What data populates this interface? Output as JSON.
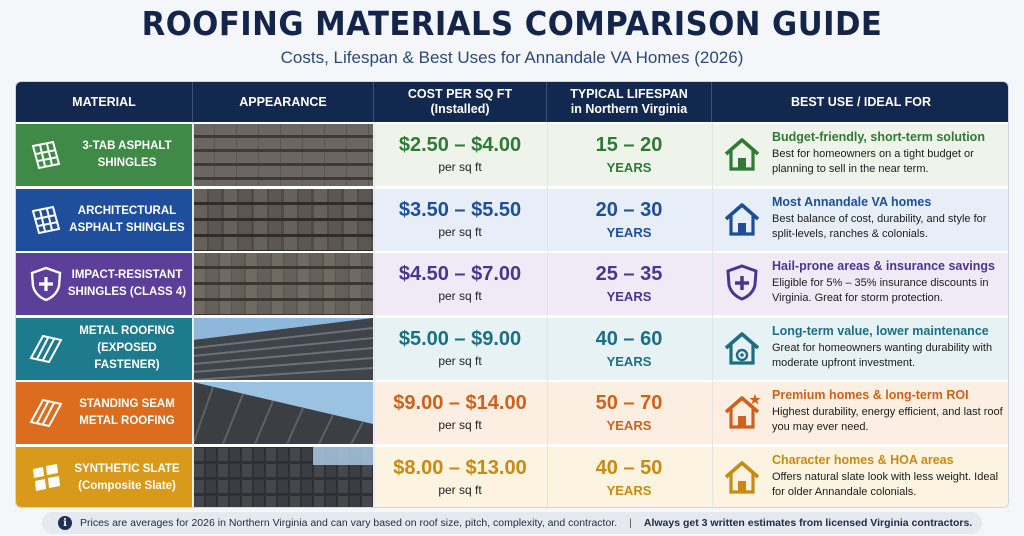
{
  "title": "ROOFING MATERIALS COMPARISON GUIDE",
  "subtitle": "Costs, Lifespan & Best Uses for Annandale VA Homes (2026)",
  "headers": {
    "material": "MATERIAL",
    "appearance": "APPEARANCE",
    "cost_line1": "COST PER SQ FT",
    "cost_line2": "(Installed)",
    "life_line1": "TYPICAL LIFESPAN",
    "life_line2": "in Northern Virginia",
    "best": "BEST USE / IDEAL FOR"
  },
  "rows": [
    {
      "label1": "3-TAB ASPHALT",
      "label2": "SHINGLES",
      "icon": "shingles-icon",
      "color": "#3f8a46",
      "tint": "#eef4ea",
      "accent": "#2f7a34",
      "cost": "$2.50 – $4.00",
      "cost_unit": "per sq ft",
      "life": "15 – 20",
      "life_unit": "YEARS",
      "best_icon": "house-icon",
      "best_title": "Budget-friendly, short-term solution",
      "best_desc": "Best for homeowners on a tight budget or planning to sell in the near term."
    },
    {
      "label1": "ARCHITECTURAL",
      "label2": "ASPHALT SHINGLES",
      "icon": "shingles-icon",
      "color": "#1f4f9c",
      "tint": "#e8eef8",
      "accent": "#1d4e9a",
      "cost": "$3.50 – $5.50",
      "cost_unit": "per sq ft",
      "life": "20 – 30",
      "life_unit": "YEARS",
      "best_icon": "house-icon",
      "best_title": "Most Annandale VA homes",
      "best_desc": "Best balance of cost, durability, and style for split-levels, ranches & colonials."
    },
    {
      "label1": "IMPACT-RESISTANT",
      "label2": "SHINGLES (CLASS 4)",
      "icon": "shield-plus-icon",
      "color": "#5b3f99",
      "tint": "#efeaf6",
      "accent": "#4b3590",
      "cost": "$4.50 – $7.00",
      "cost_unit": "per sq ft",
      "life": "25 – 35",
      "life_unit": "YEARS",
      "best_icon": "shield-plus-icon",
      "best_title": "Hail-prone areas & insurance savings",
      "best_desc": "Eligible for 5% – 35% insurance discounts in Virginia. Great for storm protection."
    },
    {
      "label1": "METAL ROOFING",
      "label2": "(EXPOSED FASTENER)",
      "icon": "metal-panel-icon",
      "color": "#1e7b8e",
      "tint": "#e6f2f4",
      "accent": "#1b6f82",
      "cost": "$5.00 – $9.00",
      "cost_unit": "per sq ft",
      "life": "40 – 60",
      "life_unit": "YEARS",
      "best_icon": "house-gear-icon",
      "best_title": "Long-term value, lower maintenance",
      "best_desc": "Great for homeowners wanting durability with moderate upfront investment."
    },
    {
      "label1": "STANDING SEAM",
      "label2": "METAL ROOFING",
      "icon": "metal-panel-icon",
      "color": "#dc6c1e",
      "tint": "#fcefe2",
      "accent": "#d0611a",
      "cost": "$9.00 – $14.00",
      "cost_unit": "per sq ft",
      "life": "50 – 70",
      "life_unit": "YEARS",
      "best_icon": "house-star-icon",
      "best_title": "Premium homes & long-term ROI",
      "best_desc": "Highest durability, energy efficient, and last roof you may ever need."
    },
    {
      "label1": "SYNTHETIC SLATE",
      "label2": "(Composite Slate)",
      "icon": "slate-tiles-icon",
      "color": "#d99a1c",
      "tint": "#fcf3e0",
      "accent": "#c98a12",
      "cost": "$8.00 – $13.00",
      "cost_unit": "per sq ft",
      "life": "40 – 50",
      "life_unit": "YEARS",
      "best_icon": "house-icon",
      "best_title": "Character homes & HOA areas",
      "best_desc": "Offers natural slate look with less weight. Ideal for older Annandale colonials."
    }
  ],
  "footer": {
    "note": "Prices are averages for 2026 in Northern Virginia and can vary based on roof size, pitch, complexity, and contractor.",
    "divider": "|",
    "tip": "Always get 3 written estimates from licensed Virginia contractors."
  }
}
